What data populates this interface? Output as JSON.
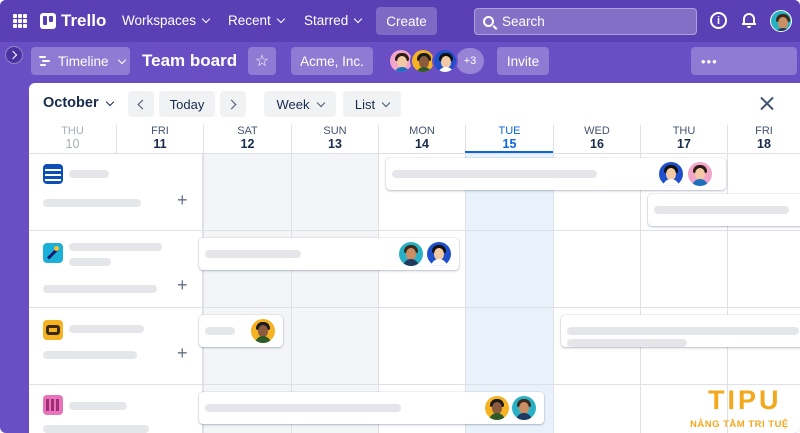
{
  "topnav": {
    "logo": "Trello",
    "menus": [
      {
        "label": "Workspaces"
      },
      {
        "label": "Recent"
      },
      {
        "label": "Starred"
      }
    ],
    "create_label": "Create",
    "search_placeholder": "Search",
    "info_glyph": "i"
  },
  "board": {
    "view_label": "Timeline",
    "title": "Team board",
    "star_glyph": "☆",
    "workspace_label": "Acme, Inc.",
    "members_more": "+3",
    "invite_label": "Invite",
    "more_label": "•••"
  },
  "timeline": {
    "month": "October",
    "today_label": "Today",
    "range_label": "Week",
    "view_mode_label": "List",
    "days": [
      {
        "name": "THU",
        "date": "10",
        "state": "muted"
      },
      {
        "name": "FRI",
        "date": "11",
        "state": "normal"
      },
      {
        "name": "SAT",
        "date": "12",
        "state": "normal"
      },
      {
        "name": "SUN",
        "date": "13",
        "state": "normal"
      },
      {
        "name": "MON",
        "date": "14",
        "state": "normal"
      },
      {
        "name": "TUE",
        "date": "15",
        "state": "today"
      },
      {
        "name": "WED",
        "date": "16",
        "state": "normal"
      },
      {
        "name": "THU",
        "date": "17",
        "state": "normal"
      },
      {
        "name": "FRI",
        "date": "18",
        "state": "normal"
      }
    ],
    "add_glyph": "+"
  },
  "watermark": {
    "main": "TIPU",
    "sub": "NÂNG TẦM TRI TUỆ"
  },
  "colors": {
    "nav_bg": "#5b3fb4",
    "board_bg": "#6a4fc4",
    "today_accent": "#0c66e4",
    "watermark": "#f3a81d"
  },
  "icons": [
    "apps-grid-icon",
    "trello-logo-icon",
    "search-icon",
    "info-icon",
    "bell-icon",
    "timeline-icon",
    "star-icon",
    "close-icon",
    "chevron-left-icon",
    "chevron-right-icon",
    "chevron-down-icon",
    "sidebar-expand-icon"
  ]
}
